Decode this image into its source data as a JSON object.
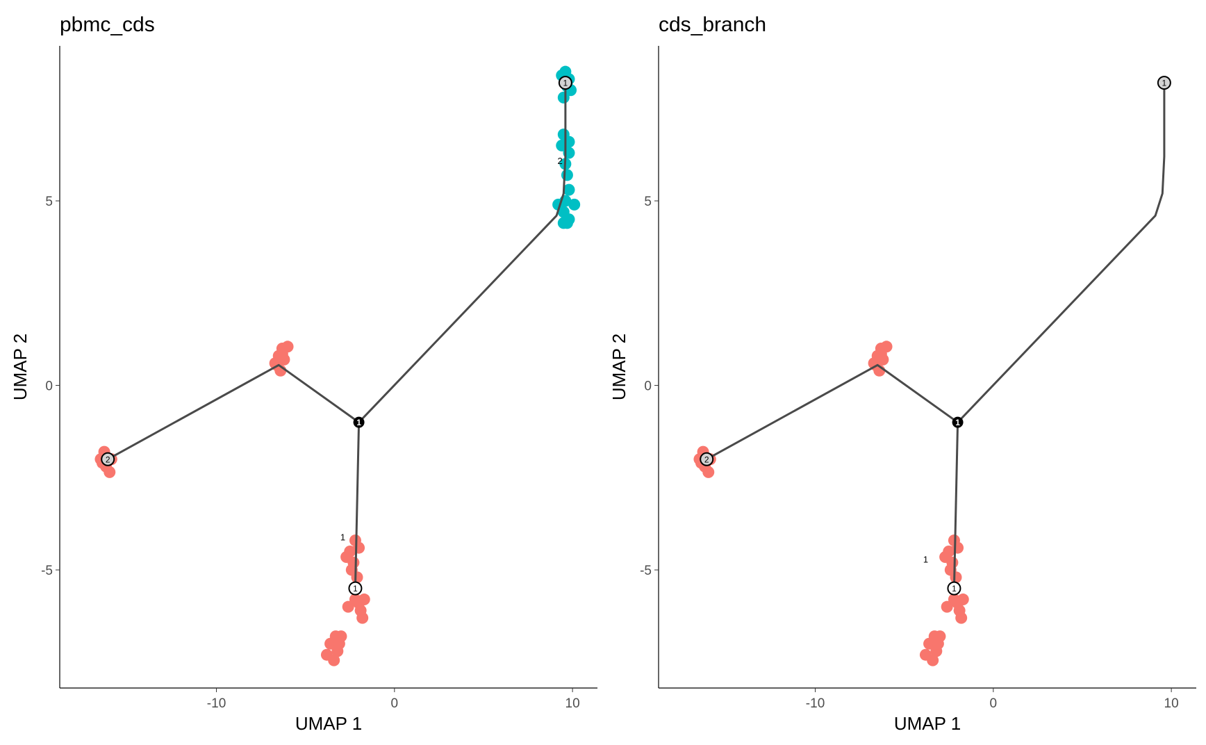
{
  "colors": {
    "cluster_1": "#F8766D",
    "cluster_2": "#00BFC4",
    "trajectory": "#4a4a4a",
    "branch_node": "#000000",
    "root_node": "#ffffff",
    "leaf_node": "#d3d3d3"
  },
  "chart_data": [
    {
      "type": "scatter",
      "title": "pbmc_cds",
      "xlabel": "UMAP 1",
      "ylabel": "UMAP 2",
      "xlim": [
        -18.8,
        11.4
      ],
      "ylim": [
        -8.2,
        9.2
      ],
      "xticks": [
        -10,
        0,
        10
      ],
      "xtick_labels": [
        "-10",
        "0",
        "10"
      ],
      "yticks": [
        -5,
        0,
        5
      ],
      "ytick_labels": [
        "-5",
        "0",
        "5"
      ],
      "grid": false,
      "series": [
        {
          "color_key": "cluster_1",
          "points": [
            [
              -16.3,
              -1.8
            ],
            [
              -16.5,
              -2.0
            ],
            [
              -16.2,
              -2.2
            ],
            [
              -16.0,
              -2.35
            ],
            [
              -16.4,
              -2.1
            ],
            [
              -15.9,
              -2.0
            ],
            [
              -6.3,
              1.0
            ],
            [
              -6.0,
              1.05
            ],
            [
              -6.5,
              0.8
            ],
            [
              -6.2,
              0.7
            ],
            [
              -6.6,
              0.55
            ],
            [
              -6.4,
              0.4
            ],
            [
              -6.7,
              0.6
            ],
            [
              -6.3,
              0.85
            ],
            [
              -2.2,
              -4.2
            ],
            [
              -2.0,
              -4.4
            ],
            [
              -2.5,
              -4.5
            ],
            [
              -2.7,
              -4.65
            ],
            [
              -2.4,
              -5.0
            ],
            [
              -2.1,
              -5.2
            ],
            [
              -2.2,
              -5.8
            ],
            [
              -2.0,
              -5.9
            ],
            [
              -1.7,
              -5.8
            ],
            [
              -1.9,
              -6.1
            ],
            [
              -1.8,
              -6.3
            ],
            [
              -2.6,
              -6.0
            ],
            [
              -2.3,
              -4.8
            ],
            [
              -3.3,
              -6.8
            ],
            [
              -3.0,
              -6.8
            ],
            [
              -3.6,
              -7.0
            ],
            [
              -3.2,
              -7.2
            ],
            [
              -3.8,
              -7.3
            ],
            [
              -3.4,
              -7.45
            ],
            [
              -3.1,
              -7.0
            ]
          ]
        },
        {
          "color_key": "cluster_2",
          "points": [
            [
              9.6,
              8.5
            ],
            [
              9.4,
              8.4
            ],
            [
              9.8,
              8.3
            ],
            [
              9.7,
              8.1
            ],
            [
              9.9,
              8.0
            ],
            [
              9.5,
              7.8
            ],
            [
              9.5,
              6.8
            ],
            [
              9.8,
              6.6
            ],
            [
              9.4,
              6.5
            ],
            [
              9.8,
              6.3
            ],
            [
              9.6,
              6.0
            ],
            [
              9.7,
              5.7
            ],
            [
              9.8,
              5.3
            ],
            [
              9.6,
              5.0
            ],
            [
              10.1,
              4.9
            ],
            [
              9.2,
              4.9
            ],
            [
              9.5,
              4.7
            ],
            [
              9.8,
              4.5
            ],
            [
              9.5,
              4.4
            ],
            [
              9.7,
              4.4
            ]
          ]
        }
      ],
      "trajectory": [
        [
          [
            9.6,
            8.2
          ],
          [
            9.6,
            6.2
          ],
          [
            9.5,
            5.2
          ],
          [
            9.1,
            4.6
          ],
          [
            -2.0,
            -1.0
          ]
        ],
        [
          [
            -2.0,
            -1.0
          ],
          [
            -2.2,
            -5.5
          ]
        ],
        [
          [
            -2.0,
            -1.0
          ],
          [
            -6.5,
            0.55
          ],
          [
            -16.1,
            -2.0
          ]
        ]
      ],
      "nodes": [
        {
          "x": -2.0,
          "y": -1.0,
          "kind": "branch",
          "label": "1"
        },
        {
          "x": 9.6,
          "y": 8.2,
          "kind": "leaf",
          "label": "1"
        },
        {
          "x": -2.2,
          "y": -5.5,
          "kind": "root",
          "label": "1"
        },
        {
          "x": -16.1,
          "y": -2.0,
          "kind": "leaf",
          "label": "2"
        }
      ],
      "annotations": [
        {
          "x": -2.9,
          "y": -4.2,
          "text": "1"
        },
        {
          "x": 9.3,
          "y": 6.0,
          "text": "2"
        }
      ]
    },
    {
      "type": "scatter",
      "title": "cds_branch",
      "xlabel": "UMAP 1",
      "ylabel": "UMAP 2",
      "xlim": [
        -18.8,
        11.4
      ],
      "ylim": [
        -8.2,
        9.2
      ],
      "xticks": [
        -10,
        0,
        10
      ],
      "xtick_labels": [
        "-10",
        "0",
        "10"
      ],
      "yticks": [
        -5,
        0,
        5
      ],
      "ytick_labels": [
        "-5",
        "0",
        "5"
      ],
      "grid": false,
      "series": [
        {
          "color_key": "cluster_1",
          "points": [
            [
              -16.3,
              -1.8
            ],
            [
              -16.5,
              -2.0
            ],
            [
              -16.2,
              -2.2
            ],
            [
              -16.0,
              -2.35
            ],
            [
              -16.4,
              -2.1
            ],
            [
              -15.9,
              -2.0
            ],
            [
              -6.3,
              1.0
            ],
            [
              -6.0,
              1.05
            ],
            [
              -6.5,
              0.8
            ],
            [
              -6.2,
              0.7
            ],
            [
              -6.6,
              0.55
            ],
            [
              -6.4,
              0.4
            ],
            [
              -6.7,
              0.6
            ],
            [
              -6.3,
              0.85
            ],
            [
              -2.2,
              -4.2
            ],
            [
              -2.0,
              -4.4
            ],
            [
              -2.5,
              -4.5
            ],
            [
              -2.7,
              -4.65
            ],
            [
              -2.4,
              -5.0
            ],
            [
              -2.1,
              -5.2
            ],
            [
              -2.2,
              -5.8
            ],
            [
              -2.0,
              -5.9
            ],
            [
              -1.7,
              -5.8
            ],
            [
              -1.9,
              -6.1
            ],
            [
              -1.8,
              -6.3
            ],
            [
              -2.6,
              -6.0
            ],
            [
              -2.3,
              -4.8
            ],
            [
              -3.3,
              -6.8
            ],
            [
              -3.0,
              -6.8
            ],
            [
              -3.6,
              -7.0
            ],
            [
              -3.2,
              -7.2
            ],
            [
              -3.8,
              -7.3
            ],
            [
              -3.4,
              -7.45
            ],
            [
              -3.1,
              -7.0
            ]
          ]
        }
      ],
      "trajectory": [
        [
          [
            9.6,
            8.2
          ],
          [
            9.6,
            6.2
          ],
          [
            9.5,
            5.2
          ],
          [
            9.1,
            4.6
          ],
          [
            -2.0,
            -1.0
          ]
        ],
        [
          [
            -2.0,
            -1.0
          ],
          [
            -2.2,
            -5.5
          ]
        ],
        [
          [
            -2.0,
            -1.0
          ],
          [
            -6.5,
            0.55
          ],
          [
            -16.1,
            -2.0
          ]
        ]
      ],
      "nodes": [
        {
          "x": -2.0,
          "y": -1.0,
          "kind": "branch",
          "label": "1"
        },
        {
          "x": 9.6,
          "y": 8.2,
          "kind": "leaf",
          "label": "1"
        },
        {
          "x": -2.2,
          "y": -5.5,
          "kind": "root",
          "label": "1"
        },
        {
          "x": -16.1,
          "y": -2.0,
          "kind": "leaf",
          "label": "2"
        }
      ],
      "annotations": [
        {
          "x": -3.8,
          "y": -4.8,
          "text": "1"
        }
      ]
    }
  ]
}
